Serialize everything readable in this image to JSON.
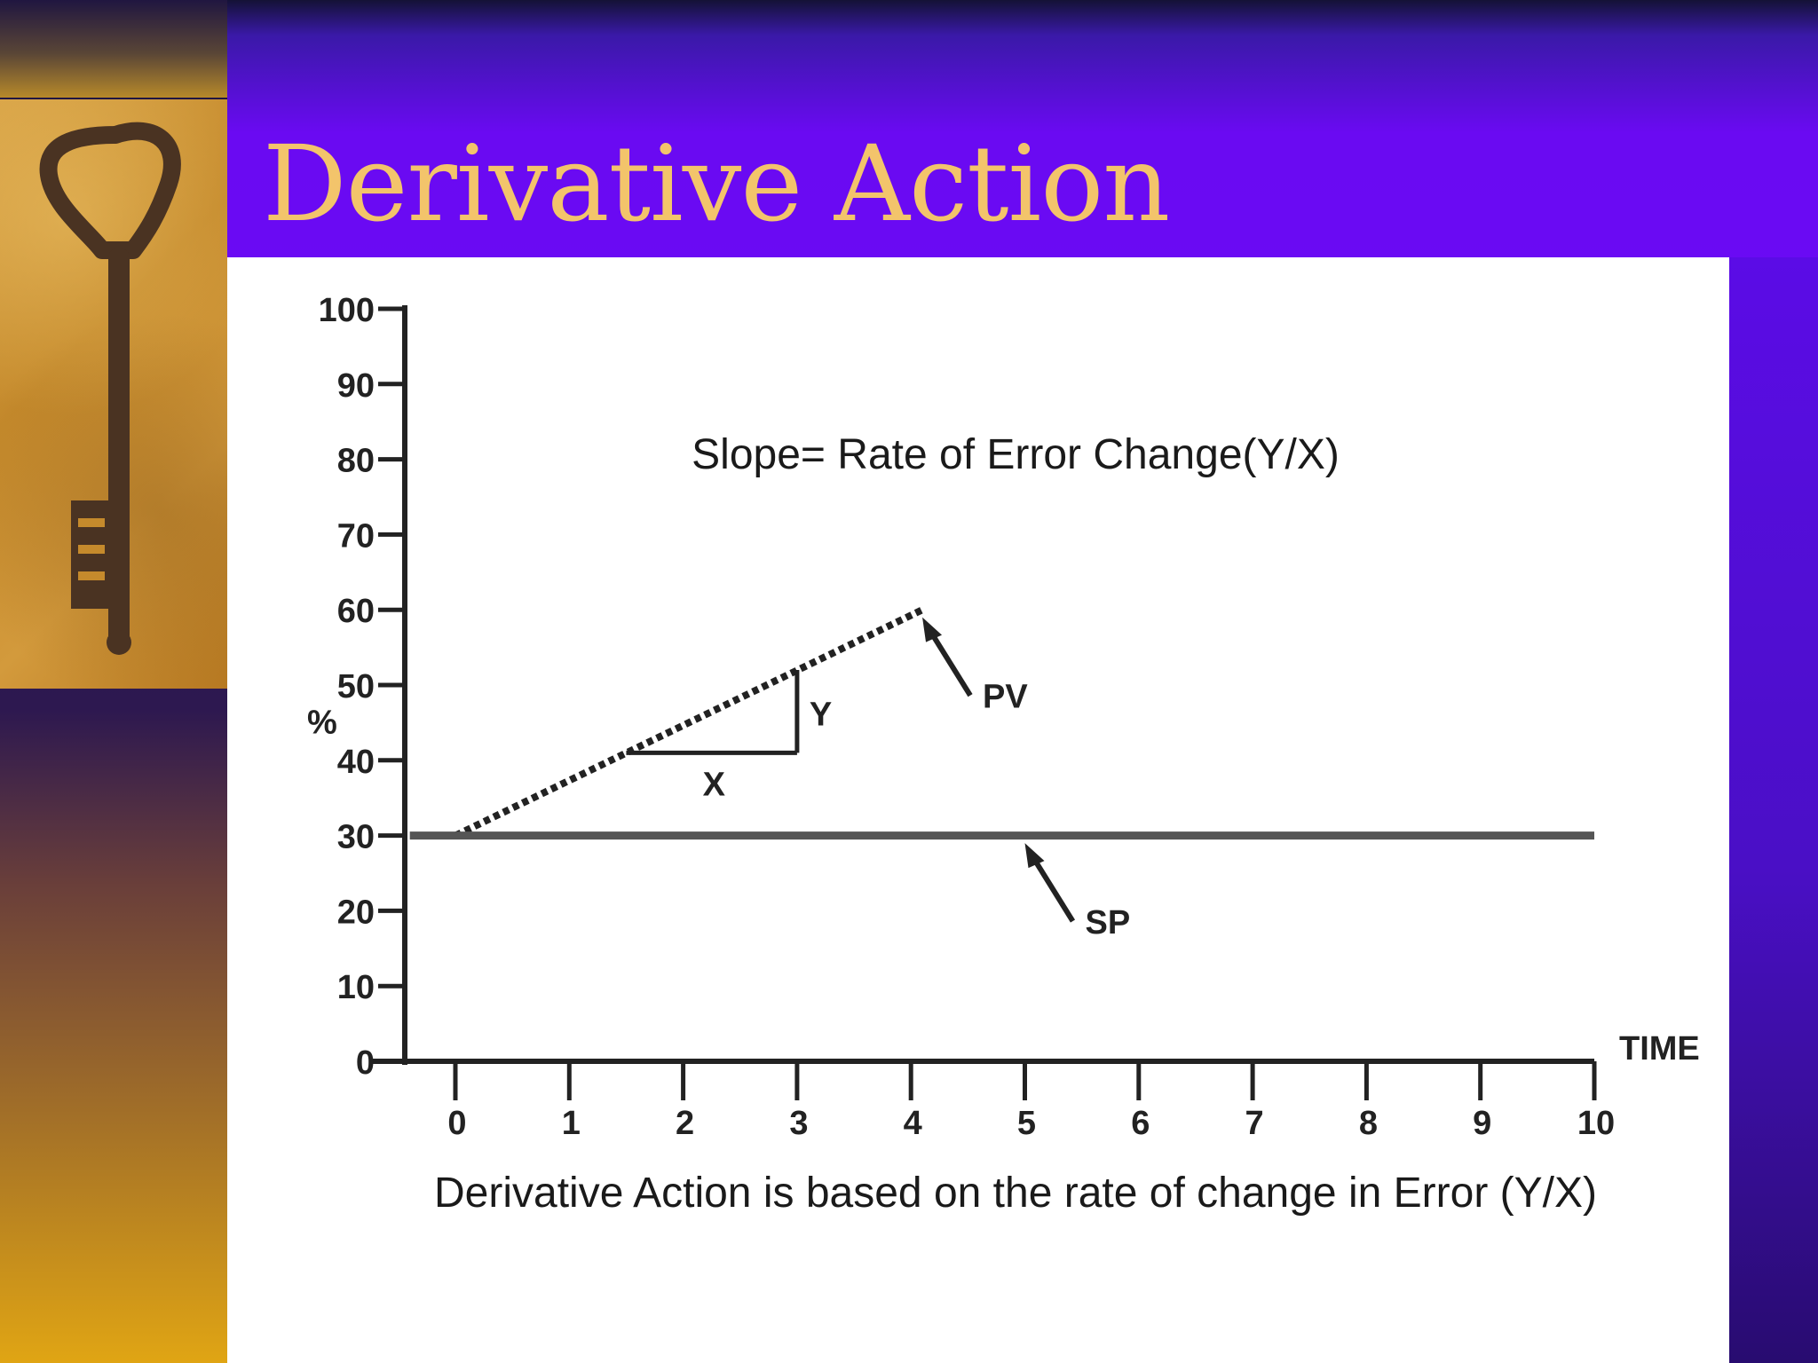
{
  "slide": {
    "title": "Derivative Action"
  },
  "colors": {
    "title_text": "#f3c46b",
    "slide_background": "#6a0af2",
    "panel_background": "#ffffff",
    "chart_ink": "#222222"
  },
  "images": {
    "left_photo": "antique-key-on-sand"
  },
  "chart_data": {
    "type": "line",
    "title": "Slope= Rate of Error Change(Y/X)",
    "caption": "Derivative Action is based on the rate of change in Error (Y/X)",
    "xlabel": "TIME",
    "ylabel": "%",
    "xlim": [
      0,
      10
    ],
    "ylim": [
      0,
      100
    ],
    "x_ticks": [
      0,
      1,
      2,
      3,
      4,
      5,
      6,
      7,
      8,
      9,
      10
    ],
    "y_ticks": [
      0,
      10,
      20,
      30,
      40,
      50,
      60,
      70,
      80,
      90,
      100
    ],
    "grid": false,
    "series": [
      {
        "name": "PV",
        "x": [
          0,
          4.1
        ],
        "y": [
          30,
          60
        ],
        "style": "dotted"
      },
      {
        "name": "SP",
        "x": [
          -0.4,
          10
        ],
        "y": [
          30,
          30
        ],
        "style": "solid"
      }
    ],
    "annotations": [
      {
        "text": "X",
        "type": "slope-run",
        "x_from": 1.5,
        "x_to": 3.0,
        "y": 41
      },
      {
        "text": "Y",
        "type": "slope-rise",
        "x": 3.0,
        "y_from": 41,
        "y_to": 52
      },
      {
        "text": "PV",
        "type": "arrow",
        "points_to": [
          4.1,
          59
        ]
      },
      {
        "text": "SP",
        "type": "arrow",
        "points_to": [
          5.0,
          29
        ]
      }
    ]
  }
}
